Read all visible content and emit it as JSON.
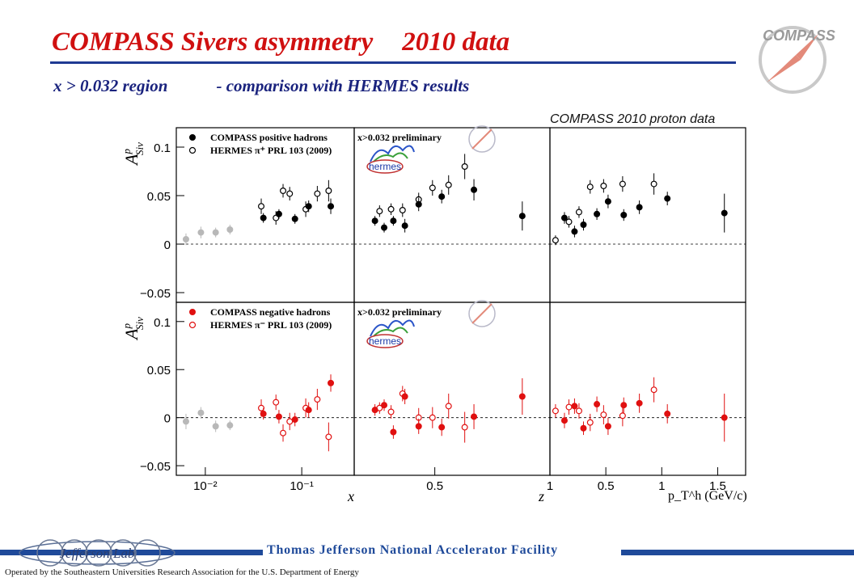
{
  "slide": {
    "title_part1": "COMPASS Sivers asymmetry",
    "title_part2": "2010 data",
    "subtitle_part1": "x > 0.032 region",
    "subtitle_part2": "-  comparison with HERMES results",
    "logo_text": "COMPASS",
    "footer_lab": "Thomas Jefferson National Accelerator Facility",
    "footer_operated": "Operated by the Southeastern Universities Research Association for the U.S. Department of Energy",
    "jlab_logo_text": "Jefferson Lab"
  },
  "colors": {
    "title": "#d01010",
    "subtitle": "#1a237e",
    "positive": "#000000",
    "negative": "#e01010",
    "lowx": "#b8b8b8",
    "bar": "#1f4a9a"
  },
  "chart_data": {
    "type": "scatter",
    "title": "COMPASS 2010 proton data",
    "ylabel": "A_Siv^p",
    "ylim": [
      -0.06,
      0.12
    ],
    "yticks": [
      "0.1",
      "0.05",
      "0",
      "−0.05"
    ],
    "ytick_values": [
      0.1,
      0.05,
      0,
      -0.05
    ],
    "panels_x": [
      {
        "var": "x",
        "label": "x",
        "scale": "log",
        "xlim": [
          0.005,
          0.35
        ],
        "ticks": [
          "10⁻²",
          "10⁻¹"
        ],
        "tick_values": [
          0.01,
          0.1
        ]
      },
      {
        "var": "z",
        "label": "z",
        "scale": "linear",
        "xlim": [
          0.15,
          1.0
        ],
        "ticks": [
          "0.5",
          "1"
        ],
        "tick_values": [
          0.5,
          1.0
        ]
      },
      {
        "var": "pT",
        "label": "p_T^h (GeV/c)",
        "scale": "linear",
        "xlim": [
          0.0,
          1.75
        ],
        "ticks": [
          "0.5",
          "1",
          "1.5"
        ],
        "tick_values": [
          0.5,
          1.0,
          1.5
        ]
      }
    ],
    "rows": [
      {
        "hadron": "positive",
        "legend": [
          "COMPASS positive hadrons",
          "HERMES π⁺ PRL 103 (2009)"
        ],
        "prelim_label": "x>0.032 preliminary",
        "hermes_logo": "hermes",
        "panels": [
          {
            "lowx": [
              [
                0.0063,
                0.005,
                0.006
              ],
              [
                0.009,
                0.012,
                0.006
              ],
              [
                0.0128,
                0.012,
                0.005
              ],
              [
                0.018,
                0.015,
                0.005
              ]
            ],
            "compass": [
              [
                0.04,
                0.027,
                0.005
              ],
              [
                0.058,
                0.031,
                0.005
              ],
              [
                0.085,
                0.026,
                0.005
              ],
              [
                0.118,
                0.039,
                0.006
              ],
              [
                0.2,
                0.039,
                0.008
              ]
            ],
            "hermes": [
              [
                0.038,
                0.039,
                0.008
              ],
              [
                0.054,
                0.027,
                0.007
              ],
              [
                0.064,
                0.055,
                0.007
              ],
              [
                0.075,
                0.052,
                0.007
              ],
              [
                0.11,
                0.036,
                0.008
              ],
              [
                0.145,
                0.052,
                0.008
              ],
              [
                0.19,
                0.055,
                0.011
              ]
            ]
          },
          {
            "compass": [
              [
                0.24,
                0.024,
                0.005
              ],
              [
                0.28,
                0.017,
                0.005
              ],
              [
                0.32,
                0.024,
                0.005
              ],
              [
                0.37,
                0.019,
                0.007
              ],
              [
                0.43,
                0.041,
                0.007
              ],
              [
                0.53,
                0.049,
                0.007
              ],
              [
                0.67,
                0.056,
                0.011
              ],
              [
                0.88,
                0.029,
                0.015
              ]
            ],
            "hermes": [
              [
                0.26,
                0.034,
                0.006
              ],
              [
                0.31,
                0.036,
                0.006
              ],
              [
                0.36,
                0.035,
                0.007
              ],
              [
                0.43,
                0.046,
                0.007
              ],
              [
                0.49,
                0.058,
                0.008
              ],
              [
                0.56,
                0.061,
                0.01
              ],
              [
                0.63,
                0.08,
                0.013
              ]
            ]
          },
          {
            "compass": [
              [
                0.13,
                0.027,
                0.006
              ],
              [
                0.22,
                0.013,
                0.006
              ],
              [
                0.3,
                0.02,
                0.006
              ],
              [
                0.42,
                0.031,
                0.006
              ],
              [
                0.52,
                0.044,
                0.007
              ],
              [
                0.66,
                0.03,
                0.006
              ],
              [
                0.8,
                0.038,
                0.007
              ],
              [
                1.05,
                0.047,
                0.007
              ],
              [
                1.56,
                0.032,
                0.02
              ]
            ],
            "hermes": [
              [
                0.05,
                0.004,
                0.005
              ],
              [
                0.17,
                0.023,
                0.006
              ],
              [
                0.26,
                0.033,
                0.006
              ],
              [
                0.36,
                0.059,
                0.007
              ],
              [
                0.48,
                0.06,
                0.007
              ],
              [
                0.65,
                0.062,
                0.008
              ],
              [
                0.93,
                0.062,
                0.011
              ]
            ]
          }
        ]
      },
      {
        "hadron": "negative",
        "legend": [
          "COMPASS negative hadrons",
          "HERMES π⁻ PRL 103 (2009)"
        ],
        "prelim_label": "x>0.032  preliminary",
        "hermes_logo": "hermes",
        "panels": [
          {
            "lowx": [
              [
                0.0063,
                -0.004,
                0.008
              ],
              [
                0.009,
                0.005,
                0.006
              ],
              [
                0.0128,
                -0.009,
                0.006
              ],
              [
                0.018,
                -0.008,
                0.005
              ]
            ],
            "compass": [
              [
                0.04,
                0.004,
                0.006
              ],
              [
                0.058,
                0.001,
                0.007
              ],
              [
                0.085,
                -0.002,
                0.007
              ],
              [
                0.118,
                0.008,
                0.008
              ],
              [
                0.2,
                0.036,
                0.009
              ]
            ],
            "hermes": [
              [
                0.038,
                0.01,
                0.009
              ],
              [
                0.054,
                0.016,
                0.008
              ],
              [
                0.064,
                -0.016,
                0.009
              ],
              [
                0.075,
                -0.004,
                0.009
              ],
              [
                0.11,
                0.01,
                0.01
              ],
              [
                0.145,
                0.019,
                0.011
              ],
              [
                0.19,
                -0.02,
                0.015
              ]
            ]
          },
          {
            "compass": [
              [
                0.24,
                0.008,
                0.006
              ],
              [
                0.28,
                0.013,
                0.006
              ],
              [
                0.32,
                -0.015,
                0.007
              ],
              [
                0.37,
                0.022,
                0.008
              ],
              [
                0.43,
                -0.009,
                0.008
              ],
              [
                0.53,
                -0.01,
                0.009
              ],
              [
                0.67,
                0.001,
                0.013
              ],
              [
                0.88,
                0.022,
                0.019
              ]
            ],
            "hermes": [
              [
                0.26,
                0.01,
                0.006
              ],
              [
                0.31,
                0.006,
                0.007
              ],
              [
                0.36,
                0.025,
                0.008
              ],
              [
                0.43,
                0.0,
                0.01
              ],
              [
                0.49,
                0.0,
                0.011
              ],
              [
                0.56,
                0.012,
                0.013
              ],
              [
                0.63,
                -0.01,
                0.016
              ]
            ]
          },
          {
            "compass": [
              [
                0.13,
                -0.003,
                0.008
              ],
              [
                0.22,
                0.012,
                0.008
              ],
              [
                0.3,
                -0.011,
                0.007
              ],
              [
                0.42,
                0.014,
                0.008
              ],
              [
                0.52,
                -0.009,
                0.009
              ],
              [
                0.66,
                0.013,
                0.008
              ],
              [
                0.8,
                0.015,
                0.01
              ],
              [
                1.05,
                0.004,
                0.01
              ],
              [
                1.56,
                0.0,
                0.025
              ]
            ],
            "hermes": [
              [
                0.05,
                0.007,
                0.007
              ],
              [
                0.17,
                0.011,
                0.008
              ],
              [
                0.26,
                0.007,
                0.008
              ],
              [
                0.36,
                -0.005,
                0.009
              ],
              [
                0.48,
                0.003,
                0.01
              ],
              [
                0.65,
                0.002,
                0.011
              ],
              [
                0.93,
                0.029,
                0.013
              ]
            ]
          }
        ]
      }
    ]
  }
}
